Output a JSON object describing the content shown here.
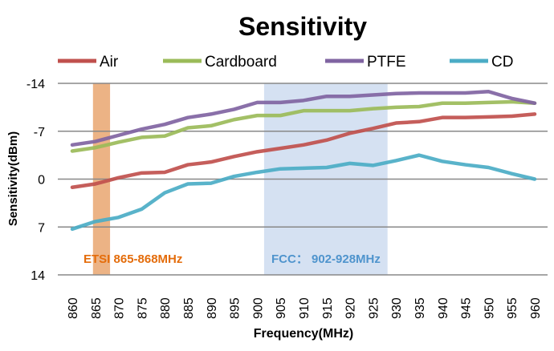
{
  "chart_data": {
    "type": "line",
    "title": "Sensitivity",
    "xlabel": "Frequency(MHz)",
    "ylabel": "Sensitivity(dBm)",
    "ylim": [
      14,
      -14
    ],
    "y_ticks": [
      "-14",
      "-7",
      "0",
      "7",
      "14"
    ],
    "y_tick_values": [
      -14,
      -7,
      0,
      7,
      14
    ],
    "x": [
      860,
      865,
      870,
      875,
      880,
      885,
      890,
      895,
      900,
      905,
      910,
      915,
      920,
      925,
      930,
      935,
      940,
      945,
      950,
      955,
      960
    ],
    "grid": true,
    "legend_position": "top",
    "series": [
      {
        "name": "Air",
        "color": "#c0504d",
        "values": [
          1.2,
          0.7,
          -0.2,
          -0.9,
          -1.0,
          -2.1,
          -2.5,
          -3.3,
          -4.0,
          -4.5,
          -5.0,
          -5.7,
          -6.7,
          -7.4,
          -8.2,
          -8.4,
          -9.0,
          -9.0,
          -9.1,
          -9.2,
          -9.5
        ]
      },
      {
        "name": "Cardboard",
        "color": "#9bbb59",
        "values": [
          -4.1,
          -4.6,
          -5.4,
          -6.1,
          -6.3,
          -7.5,
          -7.8,
          -8.7,
          -9.3,
          -9.3,
          -10.0,
          -10.0,
          -10.0,
          -10.3,
          -10.5,
          -10.6,
          -11.1,
          -11.1,
          -11.2,
          -11.3,
          -11.1
        ]
      },
      {
        "name": "PTFE",
        "color": "#8064a2",
        "values": [
          -5.0,
          -5.5,
          -6.4,
          -7.3,
          -8.0,
          -9.0,
          -9.5,
          -10.2,
          -11.2,
          -11.2,
          -11.5,
          -12.1,
          -12.1,
          -12.3,
          -12.5,
          -12.6,
          -12.6,
          -12.6,
          -12.8,
          -11.8,
          -11.1
        ]
      },
      {
        "name": "CD",
        "color": "#4bacc6",
        "values": [
          7.3,
          6.2,
          5.6,
          4.4,
          2.0,
          0.7,
          0.6,
          -0.4,
          -1.0,
          -1.5,
          -1.6,
          -1.7,
          -2.3,
          -2.0,
          -2.7,
          -3.5,
          -2.6,
          -2.1,
          -1.7,
          -0.8,
          0.0
        ]
      }
    ],
    "bands": [
      {
        "label": "ETSI 865-868MHz",
        "from": 865,
        "to": 868,
        "color": "#e59a5c",
        "label_color": "#e46c0a"
      },
      {
        "label": "FCC： 902-928MHz",
        "from": 902,
        "to": 928,
        "color": "#b9cde9",
        "label_color": "#4f94cd"
      }
    ]
  }
}
